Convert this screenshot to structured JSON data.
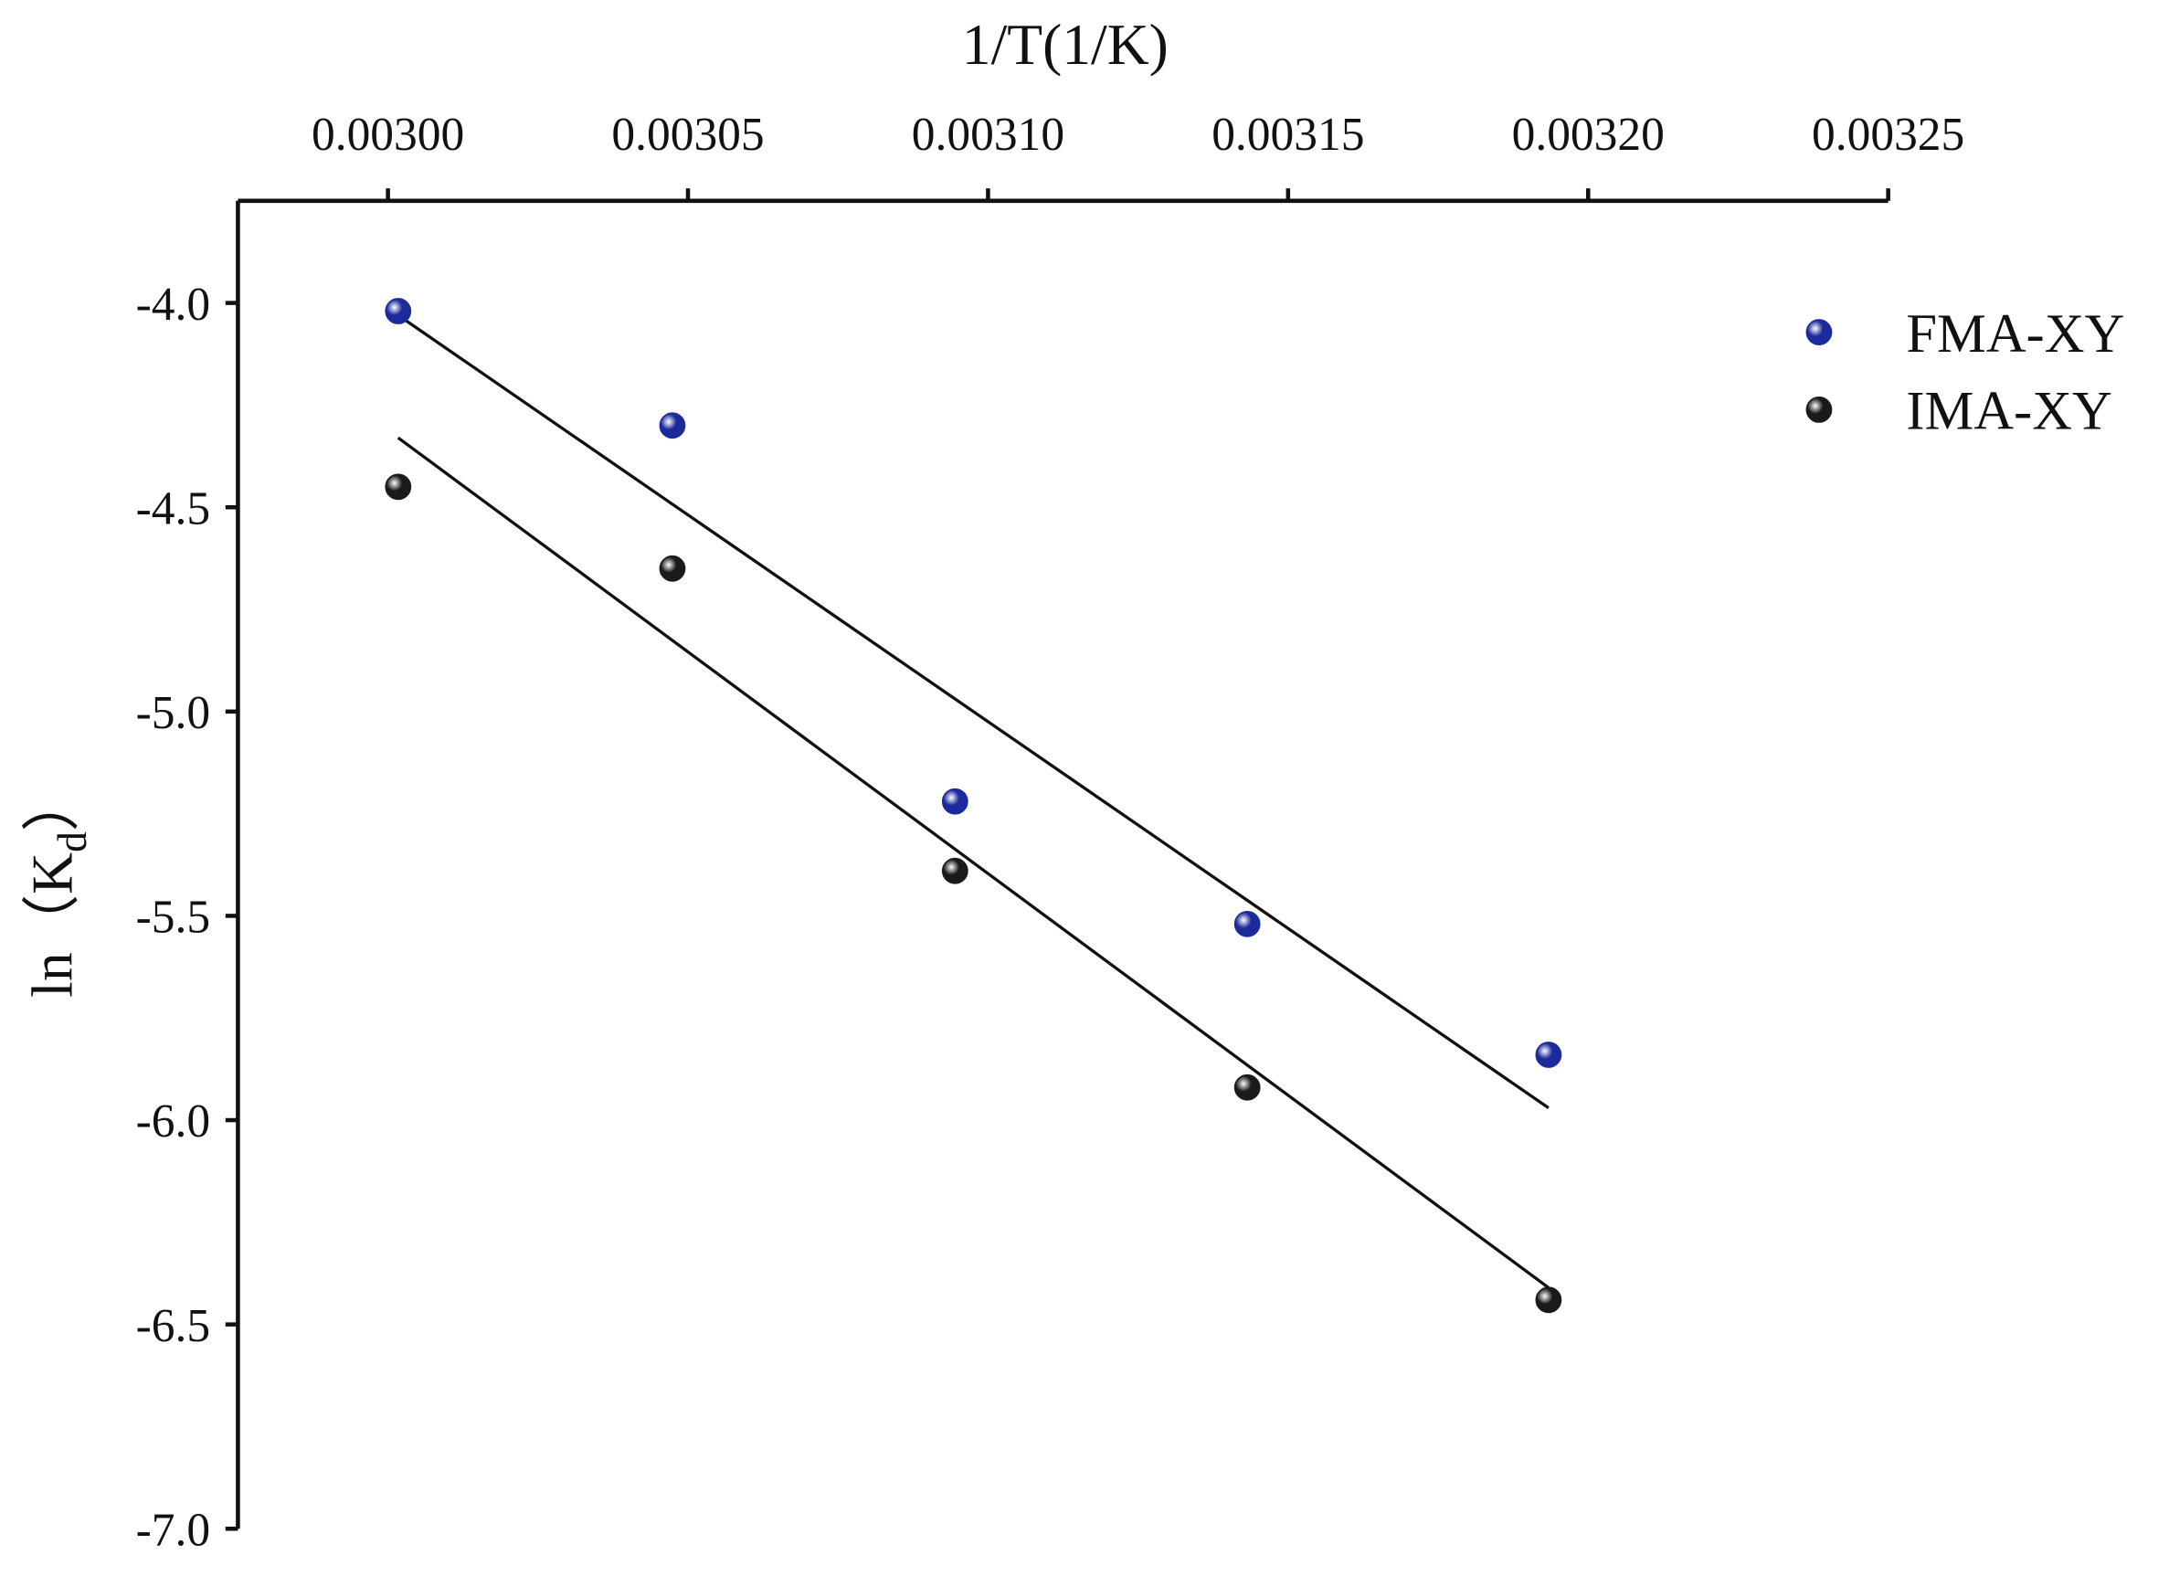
{
  "chart_data": {
    "type": "scatter",
    "x_label": "1/T(1/K)",
    "y_label": "ln（K",
    "y_label_sub": "d",
    "y_label_end": "）",
    "x": [
      0.0030017,
      0.0030474,
      0.0030945,
      0.0031432,
      0.0031934
    ],
    "fit_x": [
      0.0030017,
      0.0031934
    ],
    "series": [
      {
        "name": "FMA-XY",
        "color": "#1c2a9c",
        "values": [
          -4.02,
          -4.3,
          -5.22,
          -5.52,
          -5.84
        ],
        "fit_values": [
          -4.03,
          -5.97
        ]
      },
      {
        "name": "IMA-XY",
        "color": "#1a1a1a",
        "values": [
          -4.45,
          -4.65,
          -5.39,
          -5.92,
          -6.44
        ],
        "fit_values": [
          -4.33,
          -6.41
        ]
      }
    ],
    "xlim": [
      0.002975,
      0.00325
    ],
    "ylim": [
      -7.0,
      -3.75
    ],
    "xticks": [
      {
        "value": 0.003,
        "label": "0.00300"
      },
      {
        "value": 0.00305,
        "label": "0.00305"
      },
      {
        "value": 0.0031,
        "label": "0.00310"
      },
      {
        "value": 0.00315,
        "label": "0.00315"
      },
      {
        "value": 0.0032,
        "label": "0.00320"
      },
      {
        "value": 0.00325,
        "label": "0.00325"
      }
    ],
    "yticks": [
      {
        "value": -4,
        "label": "-4.0"
      },
      {
        "value": -4.5,
        "label": "-4.5"
      },
      {
        "value": -5,
        "label": "-5.0"
      },
      {
        "value": -5.5,
        "label": "-5.5"
      },
      {
        "value": -6,
        "label": "-6.0"
      },
      {
        "value": -6.5,
        "label": "-6.5"
      },
      {
        "value": -7,
        "label": "-7.0"
      }
    ],
    "x_axis_position": "top",
    "legend": "top-right",
    "grid": false
  }
}
